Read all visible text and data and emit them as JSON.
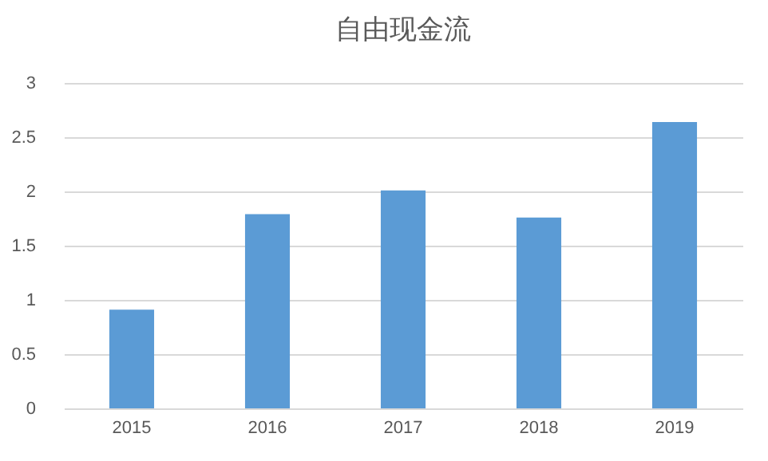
{
  "chart_data": {
    "type": "bar",
    "title": "自由现金流",
    "categories": [
      "2015",
      "2016",
      "2017",
      "2018",
      "2019"
    ],
    "values": [
      0.91,
      1.79,
      2.01,
      1.76,
      2.64
    ],
    "color": "#5b9bd5",
    "ylim": [
      0,
      3
    ],
    "yticks": [
      0,
      0.5,
      1,
      1.5,
      2,
      2.5,
      3
    ],
    "grid": "y"
  }
}
